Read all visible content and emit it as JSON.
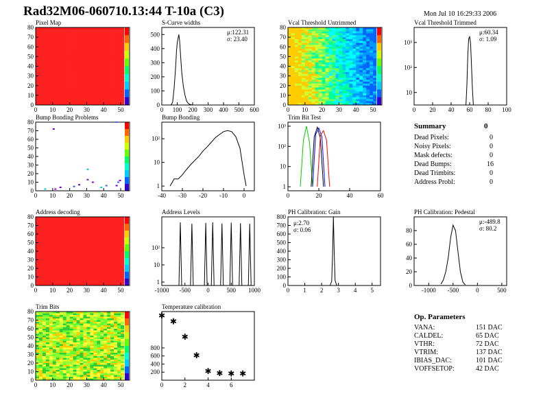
{
  "header": {
    "title": "Rad32M06-060710.13:44 T-10a (C3)",
    "date": "Mon Jul 10 16:29:33 2006"
  },
  "colors": {
    "frame": "#000000",
    "green_trim": "#00cc00",
    "blue_trim": "#0000ff",
    "red_trim": "#ff0000",
    "red_map": "#ff2020"
  },
  "panels": {
    "pixel_map": {
      "title": "Pixel Map"
    },
    "scurve": {
      "title": "S-Curve widths"
    },
    "vcal_untrimmed": {
      "title": "Vcal Threshold Untrimmed"
    },
    "vcal_trimmed": {
      "title": "Vcal Threshold Trimmed"
    },
    "bump_problems": {
      "title": "Bump Bonding Problems"
    },
    "bump_bonding": {
      "title": "Bump Bonding"
    },
    "trim_bit_test": {
      "title": "Trim Bit Test"
    },
    "address_decoding": {
      "title": "Address decoding"
    },
    "address_levels": {
      "title": "Address Levels"
    },
    "ph_gain": {
      "title": "PH Calibration: Gain"
    },
    "ph_pedestal": {
      "title": "PH Calibration: Pedestal"
    },
    "trim_bits": {
      "title": "Trim Bits"
    },
    "temperature": {
      "title": "Temperature calibration"
    }
  },
  "summary": {
    "heading": "Summary",
    "heading_value": "0",
    "rows": [
      {
        "label": "Dead Pixels:",
        "value": "0"
      },
      {
        "label": "Noisy Pixels:",
        "value": "0"
      },
      {
        "label": "Mask defects:",
        "value": "0"
      },
      {
        "label": "Dead Bumps:",
        "value": "16"
      },
      {
        "label": "Dead Trimbits:",
        "value": "0"
      },
      {
        "label": "Address Probl:",
        "value": "0"
      }
    ]
  },
  "op_params": {
    "heading": "Op. Parameters",
    "rows": [
      {
        "label": "VANA:",
        "value": "151 DAC"
      },
      {
        "label": "CALDEL:",
        "value": "65 DAC"
      },
      {
        "label": "VTHR:",
        "value": "72 DAC"
      },
      {
        "label": "VTRIM:",
        "value": "137 DAC"
      },
      {
        "label": "IBIAS_DAC:",
        "value": "101 DAC"
      },
      {
        "label": "VOFFSETOP:",
        "value": "42 DAC"
      }
    ]
  },
  "chart_data": [
    {
      "id": "pixel_map",
      "type": "heatmap",
      "title": "Pixel Map",
      "xlim": [
        0,
        52
      ],
      "ylim": [
        0,
        80
      ],
      "xticks": [
        "0",
        "10",
        "20",
        "30",
        "40",
        "50"
      ],
      "yticks": [
        "0",
        "10",
        "20",
        "30",
        "40",
        "50",
        "60",
        "70",
        "80"
      ],
      "fill": "uniform red"
    },
    {
      "id": "scurve",
      "type": "line",
      "title": "S-Curve widths",
      "xlim": [
        0,
        600
      ],
      "ylim": [
        0,
        550
      ],
      "xticks": [
        "0",
        "100",
        "200",
        "300",
        "400",
        "500",
        "600"
      ],
      "yticks": [
        "0",
        "100",
        "200",
        "300",
        "400",
        "500"
      ],
      "stats": [
        "μ:122.31",
        "σ: 23.40"
      ],
      "x": [
        60,
        70,
        80,
        90,
        95,
        100,
        105,
        110,
        115,
        120,
        125,
        130,
        140,
        150,
        160,
        170,
        180,
        190,
        200
      ],
      "y": [
        0,
        20,
        120,
        280,
        380,
        440,
        470,
        500,
        460,
        380,
        300,
        220,
        130,
        70,
        30,
        12,
        5,
        2,
        0
      ]
    },
    {
      "id": "vcal_untrimmed",
      "type": "heatmap",
      "title": "Vcal Threshold Untrimmed",
      "xlim": [
        0,
        52
      ],
      "ylim": [
        0,
        80
      ],
      "xticks": [
        "0",
        "10",
        "20",
        "30",
        "40",
        "50"
      ],
      "yticks": [
        "0",
        "10",
        "20",
        "30",
        "40",
        "50",
        "60",
        "70",
        "80"
      ],
      "fill": "gradient left-warm to right-cool"
    },
    {
      "id": "vcal_trimmed",
      "type": "line",
      "title": "Vcal Threshold Trimmed",
      "log_y": true,
      "xlim": [
        0,
        100
      ],
      "xticks": [
        "0",
        "20",
        "40",
        "60",
        "80",
        "100"
      ],
      "yticks": [
        "10",
        "10²",
        "10³"
      ],
      "stats": [
        "μ:60.34",
        "σ: 1.09"
      ],
      "x": [
        56,
        57,
        58,
        59,
        60,
        61,
        62,
        63,
        64,
        65
      ],
      "y": [
        2,
        20,
        300,
        1400,
        1700,
        900,
        120,
        15,
        3,
        1
      ]
    },
    {
      "id": "bump_problems",
      "type": "scatter",
      "title": "Bump Bonding Problems",
      "xlim": [
        0,
        52
      ],
      "ylim": [
        0,
        80
      ],
      "xticks": [
        "0",
        "10",
        "20",
        "30",
        "40",
        "50"
      ],
      "yticks": [
        "0",
        "10",
        "20",
        "30",
        "40",
        "50",
        "60",
        "70",
        "80"
      ],
      "x": [
        10,
        30,
        48,
        30,
        47,
        22,
        22,
        11,
        25,
        38,
        41,
        33,
        14,
        5,
        47,
        49
      ],
      "y": [
        72,
        25,
        10,
        13,
        6,
        5,
        5,
        2,
        7,
        4,
        6,
        10,
        4,
        2,
        80,
        12
      ]
    },
    {
      "id": "bump_bonding",
      "type": "line",
      "title": "Bump Bonding",
      "log_y": true,
      "xlim": [
        -40,
        5
      ],
      "xticks": [
        "-40",
        "-30",
        "-20",
        "-10",
        "0"
      ],
      "yticks": [
        "1",
        "10",
        "10²"
      ],
      "x": [
        -36,
        -34,
        -32,
        -30,
        -28,
        -26,
        -24,
        -22,
        -20,
        -18,
        -16,
        -14,
        -12,
        -10,
        -8,
        -6,
        -4,
        -2,
        0,
        1
      ],
      "y": [
        1,
        2,
        2,
        3,
        5,
        8,
        12,
        18,
        30,
        45,
        70,
        110,
        150,
        200,
        220,
        200,
        120,
        40,
        3,
        1
      ]
    },
    {
      "id": "trim_bit_test",
      "type": "line",
      "title": "Trim Bit Test",
      "log_y": true,
      "xlim": [
        0,
        60
      ],
      "xticks": [
        "0",
        "20",
        "40",
        "60"
      ],
      "yticks": [
        "1",
        "10",
        "10²",
        "10³"
      ],
      "series": [
        {
          "x": [
            8,
            10,
            12,
            14,
            16
          ],
          "y": [
            1,
            200,
            1000,
            150,
            1
          ]
        },
        {
          "x": [
            15,
            17,
            19,
            21,
            23
          ],
          "y": [
            1,
            300,
            900,
            250,
            1
          ]
        },
        {
          "x": [
            16,
            18,
            20,
            22,
            24
          ],
          "y": [
            1,
            400,
            800,
            300,
            1
          ]
        },
        {
          "x": [
            19,
            21,
            23,
            25,
            27
          ],
          "y": [
            1,
            350,
            600,
            200,
            1
          ]
        }
      ]
    },
    {
      "id": "address_decoding",
      "type": "heatmap",
      "title": "Address decoding",
      "xlim": [
        0,
        52
      ],
      "ylim": [
        0,
        80
      ],
      "xticks": [
        "0",
        "10",
        "20",
        "30",
        "40",
        "50"
      ],
      "yticks": [
        "0",
        "10",
        "20",
        "30",
        "40",
        "50",
        "60",
        "70",
        "80"
      ],
      "fill": "uniform red"
    },
    {
      "id": "address_levels",
      "type": "line",
      "title": "Address Levels",
      "log_y": true,
      "xlim": [
        -1000,
        1000
      ],
      "xticks": [
        "-1000",
        "-500",
        "0",
        "500",
        "1000"
      ],
      "yticks": [
        "1",
        "10",
        "10²"
      ],
      "peaks_x": [
        -600,
        -350,
        -50,
        100,
        300,
        500,
        700,
        900
      ],
      "peaks_y": [
        3000,
        2500,
        2800,
        3000,
        2600,
        2900,
        2700,
        2500
      ]
    },
    {
      "id": "ph_gain",
      "type": "line",
      "title": "PH Calibration: Gain",
      "xlim": [
        0,
        5.5
      ],
      "ylim": [
        0,
        800
      ],
      "xticks": [
        "0",
        "1",
        "2",
        "3",
        "4",
        "5"
      ],
      "yticks": [
        "0",
        "100",
        "200",
        "300",
        "400",
        "500",
        "600",
        "700",
        "800"
      ],
      "stats": [
        "μ:2.70",
        "σ: 0.06"
      ],
      "x": [
        2.5,
        2.6,
        2.65,
        2.7,
        2.75,
        2.8,
        2.9
      ],
      "y": [
        0,
        50,
        350,
        800,
        380,
        60,
        0
      ]
    },
    {
      "id": "ph_pedestal",
      "type": "line",
      "title": "PH Calibration: Pedestal",
      "xlim": [
        -1300,
        600
      ],
      "ylim": [
        0,
        100
      ],
      "xticks": [
        "-1000",
        "-500",
        "0",
        "500"
      ],
      "yticks": [
        "0",
        "20",
        "40",
        "60",
        "80"
      ],
      "stats": [
        "μ:-489.8",
        "σ: 80.2"
      ],
      "x": [
        -750,
        -700,
        -650,
        -600,
        -550,
        -500,
        -450,
        -400,
        -350,
        -300,
        -250
      ],
      "y": [
        2,
        8,
        20,
        40,
        70,
        88,
        80,
        50,
        20,
        5,
        1
      ]
    },
    {
      "id": "trim_bits",
      "type": "heatmap",
      "title": "Trim Bits",
      "xlim": [
        0,
        52
      ],
      "ylim": [
        0,
        80
      ],
      "xticks": [
        "0",
        "10",
        "20",
        "30",
        "40",
        "50"
      ],
      "yticks": [
        "0",
        "10",
        "20",
        "30",
        "40",
        "50",
        "60",
        "70",
        "80"
      ],
      "fill": "noisy green-yellow"
    },
    {
      "id": "temperature",
      "type": "scatter",
      "title": "Temperature calibration",
      "xlim": [
        0,
        8
      ],
      "ylim": [
        0,
        1700
      ],
      "xticks": [
        "0",
        "2",
        "4",
        "6"
      ],
      "yticks": [
        "200",
        "400",
        "600",
        "800"
      ],
      "x": [
        0,
        1,
        2,
        3,
        4,
        5,
        6,
        7
      ],
      "y": [
        1600,
        1450,
        1070,
        610,
        220,
        170,
        160,
        160
      ]
    }
  ]
}
